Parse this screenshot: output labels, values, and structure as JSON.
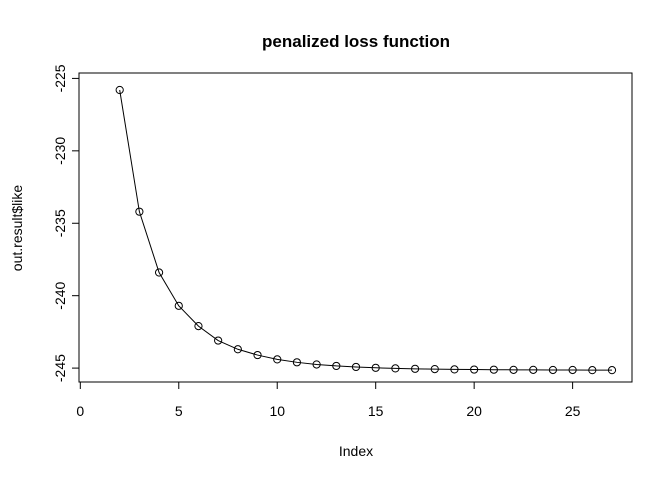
{
  "chart_data": {
    "type": "line",
    "title": "penalized loss function",
    "xlabel": "Index",
    "ylabel": "out.result$like",
    "xlim": [
      1,
      27
    ],
    "ylim": [
      -245.2,
      -225.8
    ],
    "xticks": [
      0,
      5,
      10,
      15,
      20,
      25
    ],
    "yticks": [
      -225,
      -230,
      -235,
      -240,
      -245
    ],
    "grid": false,
    "legend": "none",
    "markers": "open-circle",
    "series": [
      {
        "x": [
          2,
          3,
          4,
          5,
          6,
          7,
          8,
          9,
          10,
          11,
          12,
          13,
          14,
          15,
          16,
          17,
          18,
          19,
          20,
          21,
          22,
          23,
          24,
          25,
          26,
          27
        ],
        "y": [
          -225.8,
          -234.2,
          -238.4,
          -240.7,
          -242.1,
          -243.1,
          -243.7,
          -244.1,
          -244.4,
          -244.6,
          -244.75,
          -244.85,
          -244.92,
          -244.98,
          -245.02,
          -245.05,
          -245.07,
          -245.09,
          -245.1,
          -245.11,
          -245.12,
          -245.12,
          -245.13,
          -245.13,
          -245.14,
          -245.14
        ]
      }
    ]
  }
}
